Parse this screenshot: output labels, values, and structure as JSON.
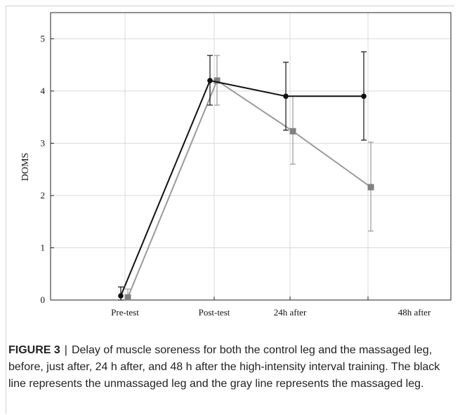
{
  "chart_data": {
    "type": "line",
    "categories": [
      "Pre-test",
      "Post-test",
      "24h after",
      "48h after"
    ],
    "ylabel": "DOMS",
    "xlabel": "",
    "ylim": [
      0,
      5.5
    ],
    "yticks": [
      0,
      1,
      2,
      3,
      4,
      5
    ],
    "grid": true,
    "series": [
      {
        "color": "#111111",
        "marker": "circle",
        "values": [
          0.08,
          4.2,
          3.9,
          3.9
        ],
        "err_low": [
          0.0,
          3.73,
          3.25,
          3.06
        ],
        "err_high": [
          0.25,
          4.68,
          4.55,
          4.75
        ]
      },
      {
        "color": "#9a9a9a",
        "marker": "square",
        "values": [
          0.05,
          4.2,
          3.23,
          2.16
        ],
        "err_low": [
          0.0,
          3.73,
          2.6,
          1.32
        ],
        "err_high": [
          0.21,
          4.68,
          3.9,
          3.02
        ]
      }
    ]
  },
  "caption": {
    "label": "FIGURE 3",
    "separator": "|",
    "text": "Delay of muscle soreness for both the control leg and the massaged leg, before, just after, 24 h after, and 48 h after the high-intensity interval training. The black line represents the unmassaged leg and the gray line represents the massaged leg."
  }
}
